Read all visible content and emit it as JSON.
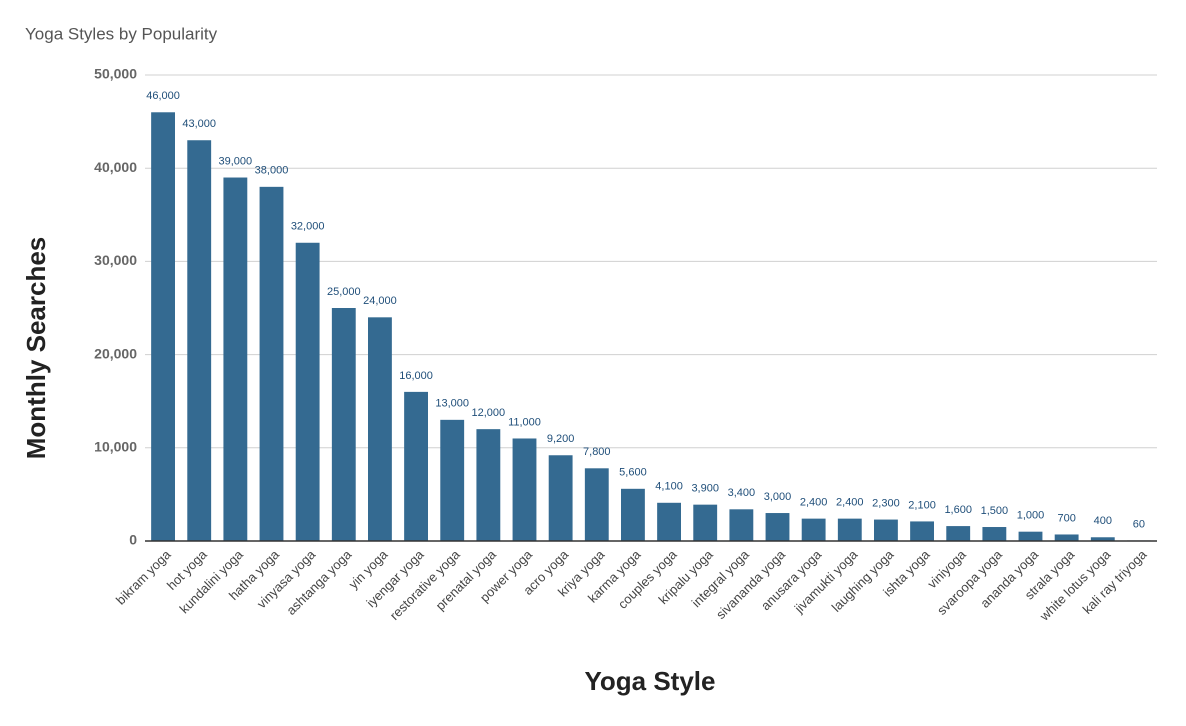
{
  "chart_data": {
    "type": "bar",
    "title": "Yoga Styles by Popularity",
    "x_label": "Yoga Style",
    "y_label": "Monthly Searches",
    "categories": [
      "bikram yoga",
      "hot yoga",
      "kundalini yoga",
      "hatha yoga",
      "vinyasa yoga",
      "ashtanga yoga",
      "yin yoga",
      "iyengar yoga",
      "restorative yoga",
      "prenatal yoga",
      "power yoga",
      "acro yoga",
      "kriya yoga",
      "karma yoga",
      "couples yoga",
      "kripalu yoga",
      "integral yoga",
      "sivananda yoga",
      "anusara yoga",
      "jivamukti yoga",
      "laughing yoga",
      "ishta yoga",
      "viniyoga",
      "svaroopa yoga",
      "ananda yoga",
      "strala yoga",
      "white lotus yoga",
      "kali ray triyoga"
    ],
    "values": [
      46000,
      43000,
      39000,
      38000,
      32000,
      25000,
      24000,
      16000,
      13000,
      12000,
      11000,
      9200,
      7800,
      5600,
      4100,
      3900,
      3400,
      3000,
      2400,
      2400,
      2300,
      2100,
      1600,
      1500,
      1000,
      700,
      400,
      60
    ],
    "value_labels": [
      "46,000",
      "43,000",
      "39,000",
      "38,000",
      "32,000",
      "25,000",
      "24,000",
      "16,000",
      "13,000",
      "12,000",
      "11,000",
      "9,200",
      "7,800",
      "5,600",
      "4,100",
      "3,900",
      "3,400",
      "3,000",
      "2,400",
      "2,400",
      "2,300",
      "2,100",
      "1,600",
      "1,500",
      "1,000",
      "700",
      "400",
      "60"
    ],
    "color": "#346a91",
    "ylim": [
      0,
      50000
    ],
    "yticks": [
      0,
      {
        "value": 10000,
        "label": "10,000"
      },
      {
        "value": 20000,
        "label": "20,000"
      },
      {
        "value": 30000,
        "label": "30,000"
      },
      {
        "value": 40000,
        "label": "40,000"
      },
      {
        "value": 50000,
        "label": "50,000"
      }
    ],
    "grid": true
  }
}
